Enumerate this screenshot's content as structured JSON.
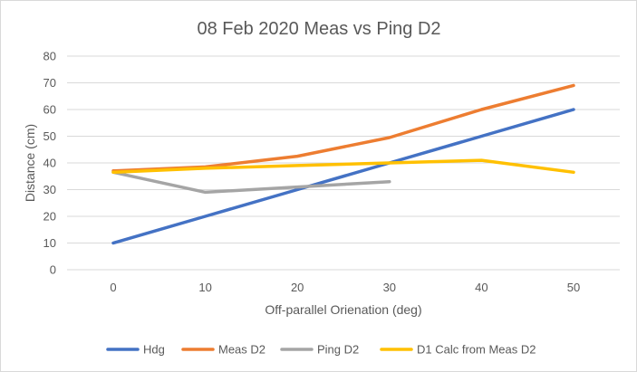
{
  "chart_data": {
    "type": "line",
    "title": "08 Feb 2020 Meas vs Ping D2",
    "xlabel": "Off-parallel Orienation (deg)",
    "ylabel": "Distance (cm)",
    "categories": [
      "0",
      "10",
      "20",
      "30",
      "40",
      "50"
    ],
    "x": [
      0,
      10,
      20,
      30,
      40,
      50
    ],
    "ylim": [
      0,
      80
    ],
    "yticks": [
      "0",
      "10",
      "20",
      "30",
      "40",
      "50",
      "60",
      "70",
      "80"
    ],
    "grid": true,
    "legend_position": "bottom",
    "series": [
      {
        "name": "Hdg",
        "color": "#4472c4",
        "values": [
          10,
          20,
          30,
          40,
          50,
          60
        ]
      },
      {
        "name": "Meas D2",
        "color": "#ed7d31",
        "values": [
          37,
          38.5,
          42.5,
          49.5,
          60,
          69
        ]
      },
      {
        "name": "Ping D2",
        "color": "#a5a5a5",
        "values": [
          36.5,
          29,
          31,
          33,
          null,
          null
        ]
      },
      {
        "name": "D1 Calc from Meas D2",
        "color": "#ffc000",
        "values": [
          36.5,
          38,
          39,
          40,
          41,
          36.5
        ]
      }
    ]
  }
}
